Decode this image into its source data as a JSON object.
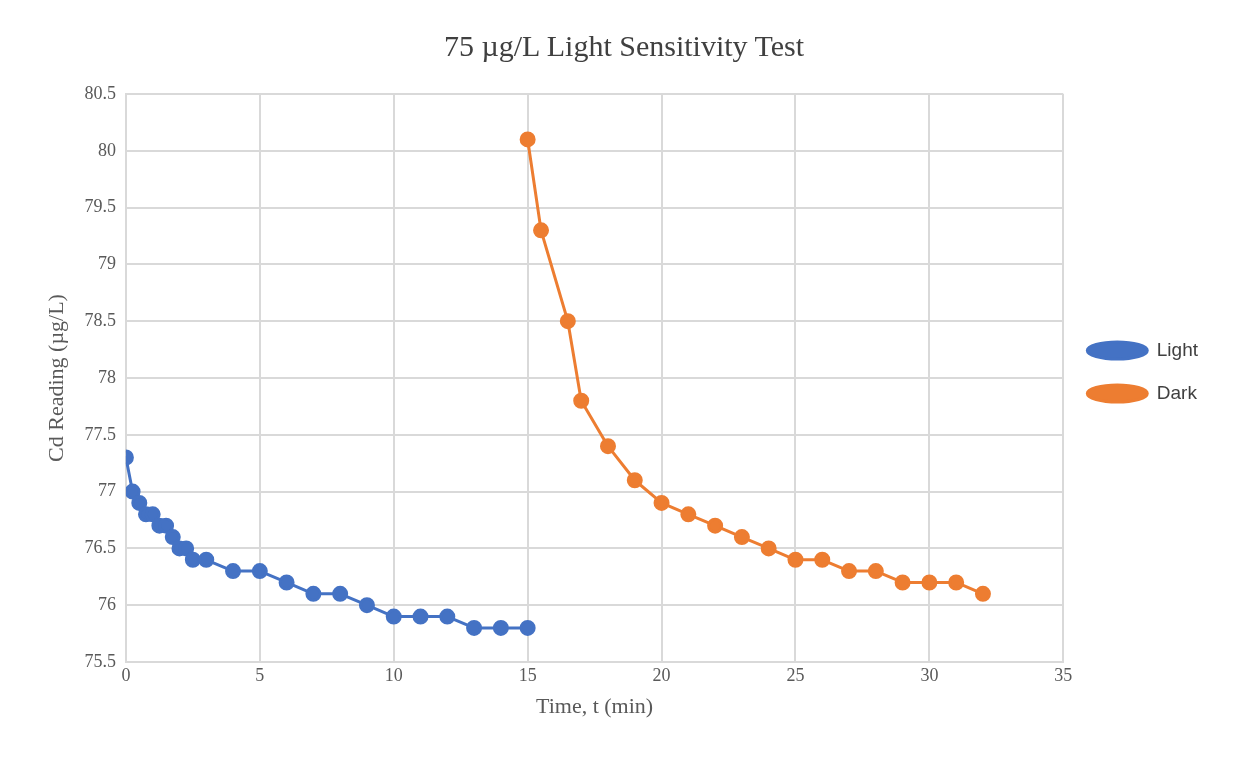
{
  "chart_data": {
    "type": "line",
    "title": "75 µg/L Light Sensitivity Test",
    "xlabel": "Time, t (min)",
    "ylabel": "Cd Reading (µg/L)",
    "xlim": [
      0,
      35
    ],
    "xticks": [
      0,
      5,
      10,
      15,
      20,
      25,
      30,
      35
    ],
    "ylim": [
      75.5,
      80.5
    ],
    "yticks": [
      75.5,
      76,
      76.5,
      77,
      77.5,
      78,
      78.5,
      79,
      79.5,
      80,
      80.5
    ],
    "grid": true,
    "legend": "right",
    "marker": "circle",
    "line_style": "solid",
    "series": [
      {
        "name": "Light",
        "color": "#4472c4",
        "x": [
          0,
          0.25,
          0.5,
          0.75,
          1,
          1.25,
          1.5,
          1.75,
          2,
          2.25,
          2.5,
          3,
          4,
          5,
          6,
          7,
          8,
          9,
          10,
          11,
          12,
          13,
          14,
          15
        ],
        "values": [
          77.3,
          77.0,
          76.9,
          76.8,
          76.8,
          76.7,
          76.7,
          76.6,
          76.5,
          76.5,
          76.4,
          76.4,
          76.3,
          76.3,
          76.2,
          76.1,
          76.1,
          76.0,
          75.9,
          75.9,
          75.9,
          75.8,
          75.8,
          75.8
        ]
      },
      {
        "name": "Dark",
        "color": "#ed7d31",
        "x": [
          15,
          15.5,
          16.5,
          17,
          18,
          19,
          20,
          21,
          22,
          23,
          24,
          25,
          26,
          27,
          28,
          29,
          30,
          31,
          32
        ],
        "values": [
          80.1,
          79.3,
          78.5,
          77.8,
          77.4,
          77.1,
          76.9,
          76.8,
          76.7,
          76.6,
          76.5,
          76.4,
          76.4,
          76.3,
          76.3,
          76.2,
          76.2,
          76.2,
          76.1
        ]
      }
    ]
  }
}
